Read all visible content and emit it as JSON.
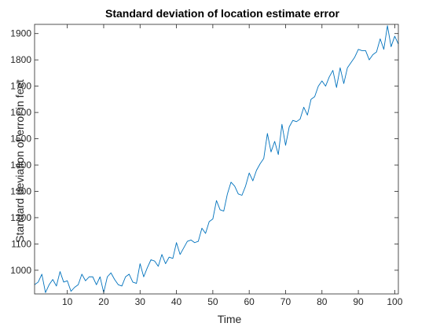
{
  "chart_data": {
    "type": "line",
    "title": "Standard deviation of location estimate error",
    "xlabel": "Time",
    "ylabel": "Standard deviation of error in feet",
    "xlim": [
      1,
      101
    ],
    "ylim": [
      910,
      1935
    ],
    "xticks": [
      10,
      20,
      30,
      40,
      50,
      60,
      70,
      80,
      90,
      100
    ],
    "yticks": [
      1000,
      1100,
      1200,
      1300,
      1400,
      1500,
      1600,
      1700,
      1800,
      1900
    ],
    "grid": false,
    "legend": "none",
    "line_color": "#0072BD",
    "series": [
      {
        "x": [
          1,
          2,
          3,
          4,
          5,
          6,
          7,
          8,
          9,
          10,
          11,
          12,
          13,
          14,
          15,
          16,
          17,
          18,
          19,
          20,
          21,
          22,
          23,
          24,
          25,
          26,
          27,
          28,
          29,
          30,
          31,
          32,
          33,
          34,
          35,
          36,
          37,
          38,
          39,
          40,
          41,
          42,
          43,
          44,
          45,
          46,
          47,
          48,
          49,
          50,
          51,
          52,
          53,
          54,
          55,
          56,
          57,
          58,
          59,
          60,
          61,
          62,
          63,
          64,
          65,
          66,
          67,
          68,
          69,
          70,
          71,
          72,
          73,
          74,
          75,
          76,
          77,
          78,
          79,
          80,
          81,
          82,
          83,
          84,
          85,
          86,
          87,
          88,
          89,
          90,
          91,
          92,
          93,
          94,
          95,
          96,
          97,
          98,
          99,
          100,
          101
        ],
        "values": [
          945,
          955,
          985,
          915,
          945,
          965,
          940,
          995,
          955,
          960,
          920,
          935,
          945,
          985,
          960,
          975,
          975,
          945,
          975,
          915,
          975,
          990,
          965,
          945,
          940,
          975,
          985,
          955,
          950,
          1025,
          975,
          1010,
          1040,
          1035,
          1015,
          1060,
          1025,
          1050,
          1045,
          1105,
          1060,
          1085,
          1110,
          1115,
          1105,
          1110,
          1160,
          1140,
          1185,
          1195,
          1265,
          1230,
          1225,
          1290,
          1335,
          1320,
          1290,
          1285,
          1320,
          1370,
          1340,
          1380,
          1405,
          1425,
          1520,
          1450,
          1490,
          1440,
          1555,
          1475,
          1545,
          1570,
          1565,
          1575,
          1620,
          1590,
          1650,
          1660,
          1700,
          1720,
          1700,
          1735,
          1760,
          1695,
          1770,
          1710,
          1770,
          1790,
          1810,
          1840,
          1835,
          1835,
          1800,
          1820,
          1830,
          1880,
          1840,
          1930,
          1850,
          1890,
          1860
        ]
      }
    ]
  }
}
